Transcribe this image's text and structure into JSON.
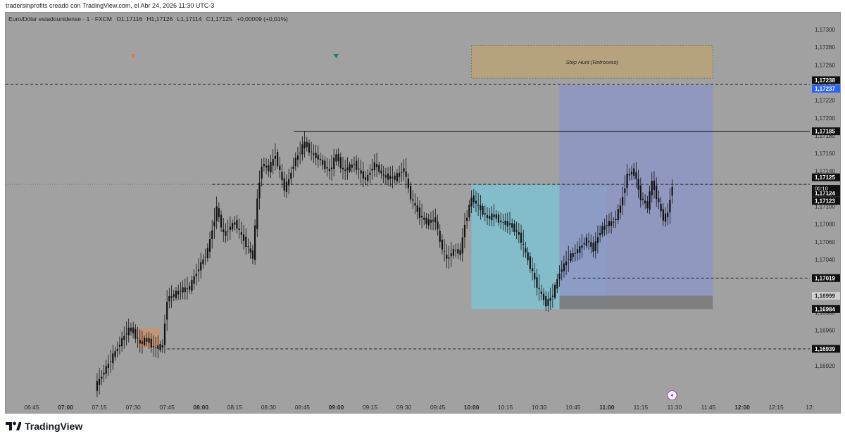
{
  "header": {
    "author_line": "tradersinprofits creado con TradingView.com, el Abr 24, 2026 11:30 UTC-3"
  },
  "legend": {
    "symbol": "Euro/Dólar estadounidense · 1 · FXCM",
    "open": "O1,17116",
    "high": "H1,17126",
    "low": "L1,17114",
    "close": "C1,17125",
    "change": "+0,00009 (+0,01%)"
  },
  "annotations": {
    "stop_hunt_label": "Stop Hunt (Retroceso)",
    "countdown": "00:10"
  },
  "brand": {
    "name": "TradingView"
  },
  "colors": {
    "background": "#a1a1a1",
    "candle": "#111111",
    "stop_hunt_zone": "#b9a47a",
    "long_position_zone": "#83bfcc",
    "short_position_zone": "#8d96c4",
    "current_price_tag": "#2962ff",
    "small_zone": "#c89570"
  },
  "chart_data": {
    "type": "candlestick",
    "symbol": "EURUSD",
    "timeframe": "1",
    "ylim": [
      1.169,
      1.173
    ],
    "y_ticks": [
      "1,17300",
      "1,17280",
      "1,17260",
      "1,17240",
      "1,17220",
      "1,17200",
      "1,17180",
      "1,17160",
      "1,17140",
      "1,17120",
      "1,17100",
      "1,17080",
      "1,17060",
      "1,17040",
      "1,17020",
      "1,17000",
      "1,16980",
      "1,16960",
      "1,16940",
      "1,16920"
    ],
    "x_ticks": [
      {
        "label": "06:45",
        "bold": false
      },
      {
        "label": "07:00",
        "bold": true
      },
      {
        "label": "07:15",
        "bold": false
      },
      {
        "label": "07:30",
        "bold": false
      },
      {
        "label": "07:45",
        "bold": false
      },
      {
        "label": "08:00",
        "bold": true
      },
      {
        "label": "08:15",
        "bold": false
      },
      {
        "label": "08:30",
        "bold": false
      },
      {
        "label": "08:45",
        "bold": false
      },
      {
        "label": "09:00",
        "bold": true
      },
      {
        "label": "09:15",
        "bold": false
      },
      {
        "label": "09:30",
        "bold": false
      },
      {
        "label": "09:45",
        "bold": false
      },
      {
        "label": "10:00",
        "bold": true
      },
      {
        "label": "10:15",
        "bold": false
      },
      {
        "label": "10:30",
        "bold": false
      },
      {
        "label": "10:45",
        "bold": false
      },
      {
        "label": "11:00",
        "bold": true
      },
      {
        "label": "11:15",
        "bold": false
      },
      {
        "label": "11:30",
        "bold": false
      },
      {
        "label": "11:45",
        "bold": false
      },
      {
        "label": "12:00",
        "bold": true
      },
      {
        "label": "12:15",
        "bold": false
      },
      {
        "label": "12:",
        "bold": false
      }
    ],
    "price_path": [
      [
        "07:14",
        1.16895
      ],
      [
        "07:28",
        1.16958
      ],
      [
        "07:30",
        1.16962
      ],
      [
        "07:34",
        1.16945
      ],
      [
        "07:37",
        1.1695
      ],
      [
        "07:40",
        1.1694
      ],
      [
        "07:44",
        1.16942
      ],
      [
        "07:46",
        1.16995
      ],
      [
        "07:52",
        1.17005
      ],
      [
        "07:56",
        1.17008
      ],
      [
        "07:58",
        1.1702
      ],
      [
        "08:04",
        1.1705
      ],
      [
        "08:08",
        1.17098
      ],
      [
        "08:11",
        1.17068
      ],
      [
        "08:16",
        1.17082
      ],
      [
        "08:20",
        1.17062
      ],
      [
        "08:24",
        1.17043
      ],
      [
        "08:26",
        1.17108
      ],
      [
        "08:28",
        1.17148
      ],
      [
        "08:31",
        1.17142
      ],
      [
        "08:34",
        1.17158
      ],
      [
        "08:38",
        1.1712
      ],
      [
        "08:40",
        1.1713
      ],
      [
        "08:42",
        1.17148
      ],
      [
        "08:47",
        1.17172
      ],
      [
        "08:50",
        1.1716
      ],
      [
        "08:53",
        1.17155
      ],
      [
        "08:55",
        1.17148
      ],
      [
        "08:58",
        1.1714
      ],
      [
        "09:01",
        1.17158
      ],
      [
        "09:04",
        1.1714
      ],
      [
        "09:09",
        1.17148
      ],
      [
        "09:14",
        1.1713
      ],
      [
        "09:18",
        1.17148
      ],
      [
        "09:22",
        1.17134
      ],
      [
        "09:27",
        1.17132
      ],
      [
        "09:31",
        1.17142
      ],
      [
        "09:34",
        1.1711
      ],
      [
        "09:38",
        1.1709
      ],
      [
        "09:41",
        1.17082
      ],
      [
        "09:45",
        1.17085
      ],
      [
        "09:47",
        1.1706
      ],
      [
        "09:50",
        1.1704
      ],
      [
        "09:53",
        1.1705
      ],
      [
        "09:56",
        1.17048
      ],
      [
        "09:58",
        1.1708
      ],
      [
        "10:01",
        1.1711
      ],
      [
        "10:04",
        1.171
      ],
      [
        "10:08",
        1.17087
      ],
      [
        "10:11",
        1.1709
      ],
      [
        "10:14",
        1.17082
      ],
      [
        "10:18",
        1.1708
      ],
      [
        "10:22",
        1.17068
      ],
      [
        "10:26",
        1.1704
      ],
      [
        "10:30",
        1.1701
      ],
      [
        "10:34",
        1.1699
      ],
      [
        "10:37",
        1.17
      ],
      [
        "10:40",
        1.17025
      ],
      [
        "10:44",
        1.17042
      ],
      [
        "10:48",
        1.1705
      ],
      [
        "10:52",
        1.17062
      ],
      [
        "10:55",
        1.17052
      ],
      [
        "10:58",
        1.17072
      ],
      [
        "11:01",
        1.1708
      ],
      [
        "11:04",
        1.17082
      ],
      [
        "11:07",
        1.171
      ],
      [
        "11:10",
        1.17135
      ],
      [
        "11:13",
        1.1714
      ],
      [
        "11:16",
        1.1711
      ],
      [
        "11:19",
        1.171
      ],
      [
        "11:21",
        1.17128
      ],
      [
        "11:24",
        1.17103
      ],
      [
        "11:26",
        1.17086
      ],
      [
        "11:28",
        1.17092
      ],
      [
        "11:30",
        1.17125
      ]
    ],
    "horizontal_levels": [
      {
        "price": 1.17238,
        "label": "1,17238",
        "style": "dashed"
      },
      {
        "price": 1.17237,
        "label": "1,17237",
        "style": "current-price-tag"
      },
      {
        "price": 1.17185,
        "label": "1,17185",
        "style": "solid"
      },
      {
        "price": 1.17125,
        "label": "1,17125",
        "style": "dashed"
      },
      {
        "price": 1.17124,
        "label": "1,17124",
        "style": "tag"
      },
      {
        "price": 1.17123,
        "label": "1,17123",
        "style": "tag"
      },
      {
        "price": 1.17019,
        "label": "1,17019",
        "style": "dashed"
      },
      {
        "price": 1.16999,
        "label": "1,16999",
        "style": "gray-tag"
      },
      {
        "price": 1.16984,
        "label": "1,16984",
        "style": "tag"
      },
      {
        "price": 1.16939,
        "label": "1,16939",
        "style": "dashed"
      }
    ],
    "zones": [
      {
        "name": "stop-hunt",
        "from": "10:00",
        "to": "11:47",
        "low": 1.17245,
        "high": 1.17282
      },
      {
        "name": "long-position",
        "from": "10:00",
        "to": "11:00",
        "low": 1.16984,
        "high": 1.17125
      },
      {
        "name": "short-position",
        "from": "10:39",
        "to": "11:47",
        "low": 1.16999,
        "high": 1.17237
      },
      {
        "name": "short-stop",
        "from": "10:39",
        "to": "11:47",
        "low": 1.16984,
        "high": 1.16999
      },
      {
        "name": "small-zone",
        "from": "07:32",
        "to": "07:42",
        "low": 1.1694,
        "high": 1.16962
      }
    ]
  }
}
